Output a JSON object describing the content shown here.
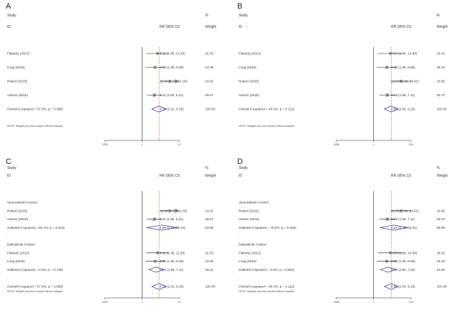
{
  "chart_data": [
    {
      "panel": "A",
      "type": "forest",
      "headers": {
        "study": "Study",
        "id": "ID",
        "effect": "RR (95% CI)",
        "percent": "%",
        "weight": "Weight"
      },
      "xlim": [
        0.0323,
        31
      ],
      "tick_labels": [
        ".0323",
        "1",
        "31"
      ],
      "overall_estimate": 4.71,
      "rows": [
        {
          "kind": "study",
          "label": "Flaherty (2012)",
          "rr": 4.11,
          "lo": 1.48,
          "hi": 11.43,
          "ci_text": "4.11 (1.48, 11.43)",
          "weight": "21.53"
        },
        {
          "kind": "study",
          "label": "Long (2015)",
          "rr": 3.3,
          "lo": 1.35,
          "hi": 8.06,
          "ci_text": "3.30 (1.35, 8.06)",
          "weight": "24.48"
        },
        {
          "kind": "study",
          "label": "Robert (2015)",
          "rr": 12.64,
          "lo": 5.15,
          "hi": 31.03,
          "ci_text": "12.64 (5.15, 31.03)",
          "weight": "24.32",
          "arrow": true
        },
        {
          "kind": "study",
          "label": "Asierto (2016)",
          "rr": 3.11,
          "lo": 1.56,
          "hi": 6.21,
          "ci_text": "3.11 (1.56, 6.21)",
          "weight": "29.67"
        },
        {
          "kind": "overall",
          "label": "Overall  (I-squared = 57.9%, p = 0.068)",
          "rr": 4.71,
          "lo": 2.42,
          "hi": 9.19,
          "ci_text": "4.71 (2.42, 9.19)",
          "weight": "100.00"
        }
      ],
      "note": "NOTE: Weights are from random effects analysis"
    },
    {
      "panel": "B",
      "type": "forest",
      "headers": {
        "study": "Study",
        "id": "ID",
        "effect": "RR (95% CI)",
        "percent": "%",
        "weight": "Weight"
      },
      "xlim": [
        0.0338,
        29.6
      ],
      "tick_labels": [
        ".0338",
        "1",
        "29.6"
      ],
      "overall_estimate": 4.92,
      "rows": [
        {
          "kind": "study",
          "label": "Flaherty (2012)",
          "rr": 4.54,
          "lo": 1.46,
          "hi": 14.08,
          "ci_text": "4.54 (1.46, 14.08)",
          "weight": "19.15"
        },
        {
          "kind": "study",
          "label": "Long (2015)",
          "rr": 3.3,
          "lo": 1.35,
          "hi": 8.06,
          "ci_text": "3.30 (1.35, 8.06)",
          "weight": "25.19"
        },
        {
          "kind": "study",
          "label": "Robert (2015)",
          "rr": 12.03,
          "lo": 4.89,
          "hi": 29.61,
          "ci_text": "12.03 (4.89, 29.61)",
          "weight": "24.95"
        },
        {
          "kind": "study",
          "label": "Asierto (2016)",
          "rr": 3.46,
          "lo": 1.68,
          "hi": 7.11,
          "ci_text": "3.46 (1.68, 7.11)",
          "weight": "30.70"
        },
        {
          "kind": "overall",
          "label": "Overall  (I-squared = 48.3%, p = 0.122)",
          "rr": 4.92,
          "lo": 2.64,
          "hi": 9.16,
          "ci_text": "4.92 (2.64, 9.16)",
          "weight": "100.00"
        }
      ],
      "note": "NOTE: Weights are from random effects analysis"
    },
    {
      "panel": "C",
      "type": "forest",
      "headers": {
        "study": "Study",
        "id": "ID",
        "effect": "RR (95% CI)",
        "percent": "%",
        "weight": "Weight"
      },
      "xlim": [
        0.0323,
        31
      ],
      "tick_labels": [
        ".0323",
        "1",
        "31"
      ],
      "overall_estimate": 4.71,
      "rows": [
        {
          "kind": "group",
          "label": "Vemurafenib Control"
        },
        {
          "kind": "study",
          "label": "Robert (2015)",
          "rr": 12.64,
          "lo": 5.15,
          "hi": 31.03,
          "ci_text": "12.64 (5.15, 31.03)",
          "weight": "24.32",
          "arrow": true
        },
        {
          "kind": "study",
          "label": "Asierto (2016)",
          "rr": 3.11,
          "lo": 1.56,
          "hi": 6.21,
          "ci_text": "3.11 (1.56, 6.21)",
          "weight": "29.67"
        },
        {
          "kind": "subtotal",
          "label": "Subtotal  (I-squared = 84.1%, p = 0.012)",
          "rr": 6.09,
          "lo": 1.47,
          "hi": 25.24,
          "ci_text": "6.09 (1.47, 25.24)",
          "weight": "53.99"
        },
        {
          "kind": "spacer",
          "label": "."
        },
        {
          "kind": "group",
          "label": "Dabrafenib Control"
        },
        {
          "kind": "study",
          "label": "Flaherty (2012)",
          "rr": 4.11,
          "lo": 1.48,
          "hi": 11.43,
          "ci_text": "4.11 (1.48, 11.43)",
          "weight": "21.53"
        },
        {
          "kind": "study",
          "label": "Long (2015)",
          "rr": 3.3,
          "lo": 1.35,
          "hi": 8.06,
          "ci_text": "3.30 (1.35, 8.06)",
          "weight": "24.48"
        },
        {
          "kind": "subtotal",
          "label": "Subtotal  (I-squared = 0.0%, p = 0.749)",
          "rr": 3.63,
          "lo": 1.85,
          "hi": 7.11,
          "ci_text": "3.63 (1.85, 7.11)",
          "weight": "46.01"
        },
        {
          "kind": "spacer",
          "label": "."
        },
        {
          "kind": "overall",
          "label": "Overall  (I-squared = 57.9%, p = 0.068)",
          "rr": 4.71,
          "lo": 2.42,
          "hi": 9.19,
          "ci_text": "4.71 (2.42, 9.19)",
          "weight": "100.00"
        }
      ],
      "note": "NOTE: Weights are from random effects analysis"
    },
    {
      "panel": "D",
      "type": "forest",
      "headers": {
        "study": "Study",
        "id": "ID",
        "effect": "RR (95% CI)",
        "percent": "%",
        "weight": "Weight"
      },
      "xlim": [
        0.0338,
        29.6
      ],
      "tick_labels": [
        ".0338",
        "1",
        "29.6"
      ],
      "overall_estimate": 4.92,
      "rows": [
        {
          "kind": "group",
          "label": "Vemurafenib Control"
        },
        {
          "kind": "study",
          "label": "Robert (2015)",
          "rr": 12.03,
          "lo": 4.89,
          "hi": 29.61,
          "ci_text": "12.03 (4.89, 29.61)",
          "weight": "24.95"
        },
        {
          "kind": "study",
          "label": "Asierto (2016)",
          "rr": 3.46,
          "lo": 1.68,
          "hi": 7.11,
          "ci_text": "3.46 (1.68, 7.11)",
          "weight": "30.70"
        },
        {
          "kind": "subtotal",
          "label": "Subtotal  (I-squared = 79.0%, p = 0.029)",
          "rr": 6.27,
          "lo": 1.79,
          "hi": 22.01,
          "ci_text": "6.27 (1.79, 22.01)",
          "weight": "55.65"
        },
        {
          "kind": "spacer",
          "label": "."
        },
        {
          "kind": "group",
          "label": "Dabrafenib Control"
        },
        {
          "kind": "study",
          "label": "Flaherty (2012)",
          "rr": 4.54,
          "lo": 1.46,
          "hi": 14.08,
          "ci_text": "4.54 (1.46, 14.08)",
          "weight": "19.15"
        },
        {
          "kind": "study",
          "label": "Long (2015)",
          "rr": 3.3,
          "lo": 1.35,
          "hi": 8.06,
          "ci_text": "3.30 (1.35, 8.06)",
          "weight": "25.19"
        },
        {
          "kind": "subtotal",
          "label": "Subtotal  (I-squared = 0.0%, p = 0.663)",
          "rr": 3.73,
          "lo": 1.85,
          "hi": 7.52,
          "ci_text": "3.73 (1.85, 7.52)",
          "weight": "44.35"
        },
        {
          "kind": "spacer",
          "label": "."
        },
        {
          "kind": "overall",
          "label": "Overall  (I-squared = 48.3%, p = 0.122)",
          "rr": 4.92,
          "lo": 2.64,
          "hi": 9.16,
          "ci_text": "4.92 (2.64, 9.16)",
          "weight": "100.00"
        }
      ],
      "note": "NOTE: Weights are from random effects analysis"
    }
  ]
}
